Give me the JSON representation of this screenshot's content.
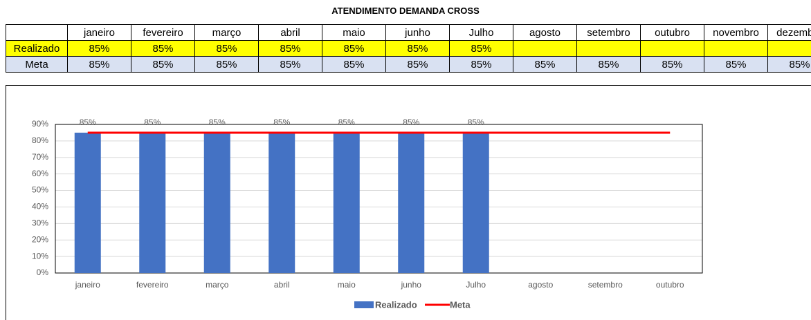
{
  "header": {
    "title": "ATENDIMENTO DEMANDA CROSS"
  },
  "table": {
    "columns": [
      "janeiro",
      "fevereiro",
      "março",
      "abril",
      "maio",
      "junho",
      "Julho",
      "agosto",
      "setembro",
      "outubro",
      "novembro",
      "dezembro"
    ],
    "rows": [
      {
        "label": "Realizado",
        "cells": [
          "85%",
          "85%",
          "85%",
          "85%",
          "85%",
          "85%",
          "85%",
          null,
          null,
          null,
          null,
          null
        ]
      },
      {
        "label": "Meta",
        "cells": [
          "85%",
          "85%",
          "85%",
          "85%",
          "85%",
          "85%",
          "85%",
          "85%",
          "85%",
          "85%",
          "85%",
          "85%"
        ]
      }
    ]
  },
  "chart_data": {
    "type": "bar",
    "categories": [
      "janeiro",
      "fevereiro",
      "março",
      "abril",
      "maio",
      "junho",
      "Julho",
      "agosto",
      "setembro",
      "outubro"
    ],
    "series": [
      {
        "name": "Realizado",
        "type": "bar",
        "color": "#4472c4",
        "values": [
          85,
          85,
          85,
          85,
          85,
          85,
          85,
          null,
          null,
          null
        ],
        "value_labels": [
          "85%",
          "85%",
          "85%",
          "85%",
          "85%",
          "85%",
          "85%",
          null,
          null,
          null
        ]
      },
      {
        "name": "Meta",
        "type": "line",
        "color": "#ff0000",
        "values": [
          85,
          85,
          85,
          85,
          85,
          85,
          85,
          85,
          85,
          85
        ]
      }
    ],
    "ylim": [
      0,
      90
    ],
    "yticks": [
      {
        "value": 0,
        "label": "0%"
      },
      {
        "value": 10,
        "label": "10%"
      },
      {
        "value": 20,
        "label": "20%"
      },
      {
        "value": 30,
        "label": "30%"
      },
      {
        "value": 40,
        "label": "40%"
      },
      {
        "value": 50,
        "label": "50%"
      },
      {
        "value": 60,
        "label": "60%"
      },
      {
        "value": 70,
        "label": "70%"
      },
      {
        "value": 80,
        "label": "80%"
      },
      {
        "value": 90,
        "label": "90%"
      }
    ],
    "grid": true,
    "legend": "bottom"
  }
}
